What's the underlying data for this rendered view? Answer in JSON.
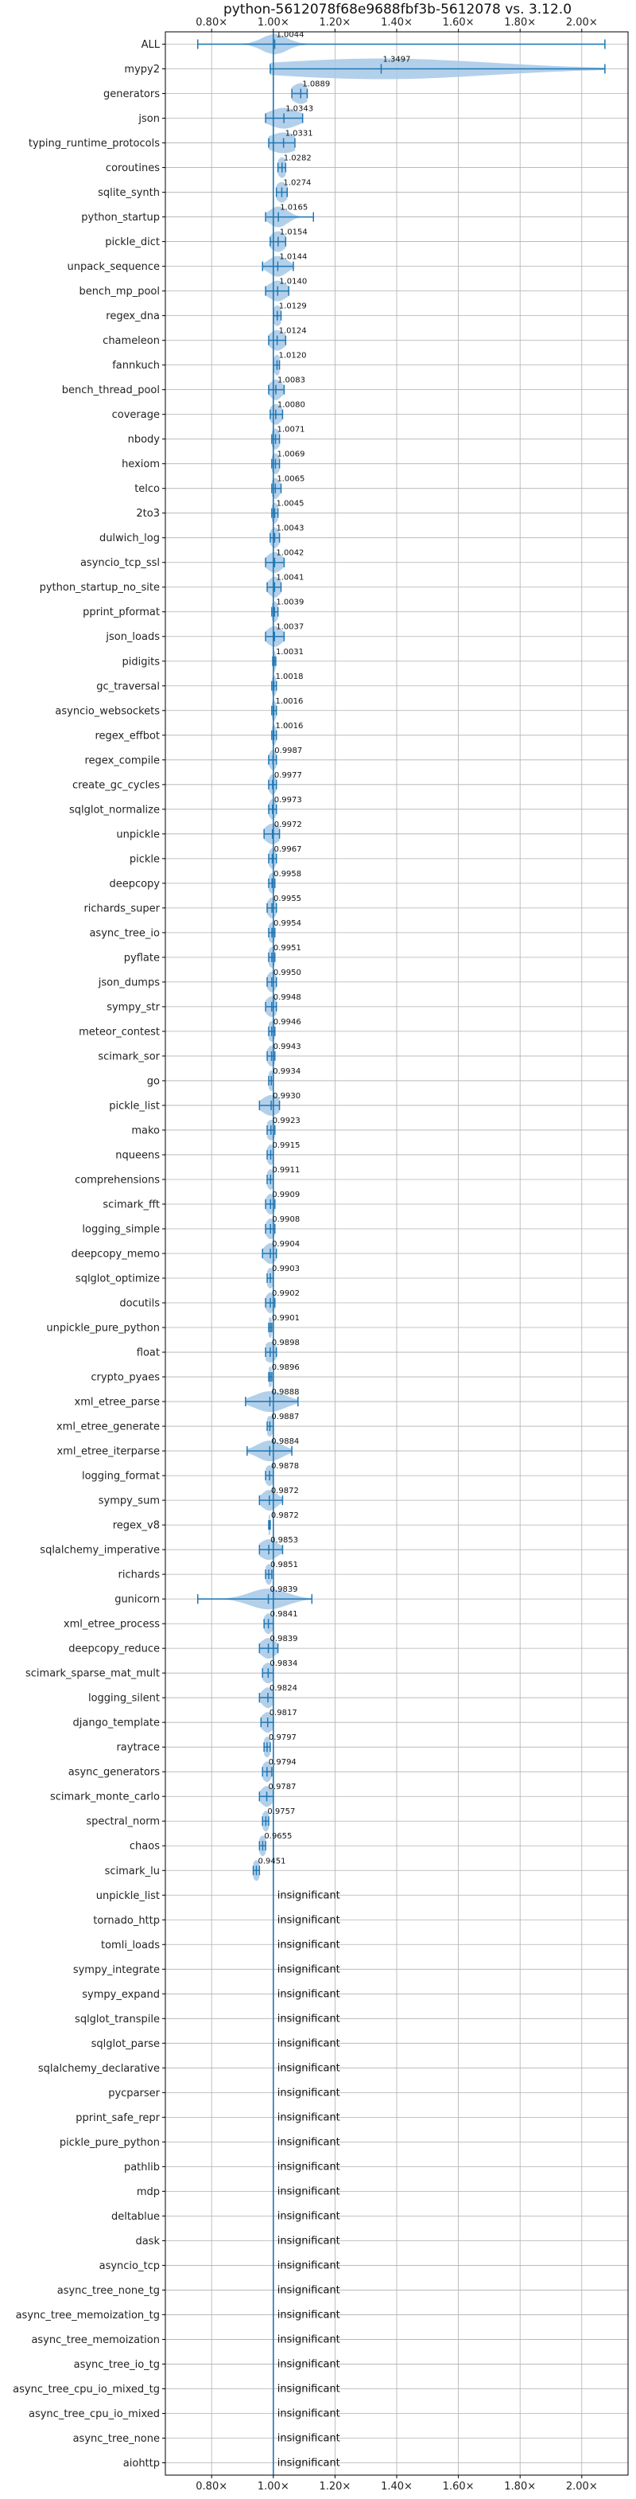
{
  "chart_data": {
    "type": "violin",
    "title": "python-5612078f68e9688fbf3b-5612078 vs. 3.12.0",
    "xlim": [
      0.65,
      2.15
    ],
    "x_ticks": [
      {
        "value": 0.8,
        "label": "0.80×"
      },
      {
        "value": 1.0,
        "label": "1.00×"
      },
      {
        "value": 1.2,
        "label": "1.20×"
      },
      {
        "value": 1.4,
        "label": "1.40×"
      },
      {
        "value": 1.6,
        "label": "1.60×"
      },
      {
        "value": 1.8,
        "label": "1.80×"
      },
      {
        "value": 2.0,
        "label": "2.00×"
      }
    ],
    "tick_positions": [
      "top",
      "bottom"
    ],
    "grid": true,
    "reference_line": 1.0,
    "colors": {
      "accent": "#1f77b4",
      "violin": "#a6c8e6",
      "grid": "#b0b0b0"
    },
    "benchmarks": [
      {
        "name": "ALL",
        "value": 1.0044,
        "label": "1.0044",
        "min": 0.755,
        "max": 2.075,
        "spread": 0.04
      },
      {
        "name": "mypy2",
        "value": 1.3497,
        "label": "1.3497",
        "min": 0.99,
        "max": 2.075,
        "spread": 0.35
      },
      {
        "name": "generators",
        "value": 1.0889,
        "label": "1.0889",
        "min": 1.06,
        "max": 1.11,
        "spread": 0.03
      },
      {
        "name": "json",
        "value": 1.0343,
        "label": "1.0343",
        "min": 0.975,
        "max": 1.095,
        "spread": 0.05
      },
      {
        "name": "typing_runtime_protocols",
        "value": 1.0331,
        "label": "1.0331",
        "min": 0.985,
        "max": 1.07,
        "spread": 0.05
      },
      {
        "name": "coroutines",
        "value": 1.0282,
        "label": "1.0282",
        "min": 1.015,
        "max": 1.04,
        "spread": 0.015
      },
      {
        "name": "sqlite_synth",
        "value": 1.0274,
        "label": "1.0274",
        "min": 1.01,
        "max": 1.045,
        "spread": 0.02
      },
      {
        "name": "python_startup",
        "value": 1.0165,
        "label": "1.0165",
        "min": 0.975,
        "max": 1.13,
        "spread": 0.03
      },
      {
        "name": "pickle_dict",
        "value": 1.0154,
        "label": "1.0154",
        "min": 0.99,
        "max": 1.04,
        "spread": 0.025
      },
      {
        "name": "unpack_sequence",
        "value": 1.0144,
        "label": "1.0144",
        "min": 0.965,
        "max": 1.065,
        "spread": 0.03
      },
      {
        "name": "bench_mp_pool",
        "value": 1.014,
        "label": "1.0140",
        "min": 0.975,
        "max": 1.05,
        "spread": 0.03
      },
      {
        "name": "regex_dna",
        "value": 1.0129,
        "label": "1.0129",
        "min": 1.0,
        "max": 1.025,
        "spread": 0.015
      },
      {
        "name": "chameleon",
        "value": 1.0124,
        "label": "1.0124",
        "min": 0.985,
        "max": 1.04,
        "spread": 0.025
      },
      {
        "name": "fannkuch",
        "value": 1.012,
        "label": "1.0120",
        "min": 1.0,
        "max": 1.02,
        "spread": 0.012
      },
      {
        "name": "bench_thread_pool",
        "value": 1.0083,
        "label": "1.0083",
        "min": 0.985,
        "max": 1.035,
        "spread": 0.02
      },
      {
        "name": "coverage",
        "value": 1.008,
        "label": "1.0080",
        "min": 0.99,
        "max": 1.03,
        "spread": 0.02
      },
      {
        "name": "nbody",
        "value": 1.0071,
        "label": "1.0071",
        "min": 0.995,
        "max": 1.02,
        "spread": 0.015
      },
      {
        "name": "hexiom",
        "value": 1.0069,
        "label": "1.0069",
        "min": 0.995,
        "max": 1.02,
        "spread": 0.015
      },
      {
        "name": "telco",
        "value": 1.0065,
        "label": "1.0065",
        "min": 0.995,
        "max": 1.025,
        "spread": 0.015
      },
      {
        "name": "2to3",
        "value": 1.0045,
        "label": "1.0045",
        "min": 0.995,
        "max": 1.015,
        "spread": 0.012
      },
      {
        "name": "dulwich_log",
        "value": 1.0043,
        "label": "1.0043",
        "min": 0.99,
        "max": 1.02,
        "spread": 0.015
      },
      {
        "name": "asyncio_tcp_ssl",
        "value": 1.0042,
        "label": "1.0042",
        "min": 0.975,
        "max": 1.035,
        "spread": 0.025
      },
      {
        "name": "python_startup_no_site",
        "value": 1.0041,
        "label": "1.0041",
        "min": 0.98,
        "max": 1.025,
        "spread": 0.02
      },
      {
        "name": "pprint_pformat",
        "value": 1.0039,
        "label": "1.0039",
        "min": 0.995,
        "max": 1.015,
        "spread": 0.012
      },
      {
        "name": "json_loads",
        "value": 1.0037,
        "label": "1.0037",
        "min": 0.975,
        "max": 1.035,
        "spread": 0.025
      },
      {
        "name": "pidigits",
        "value": 1.0031,
        "label": "1.0031",
        "min": 0.998,
        "max": 1.008,
        "spread": 0.005
      },
      {
        "name": "gc_traversal",
        "value": 1.0018,
        "label": "1.0018",
        "min": 0.995,
        "max": 1.01,
        "spread": 0.008
      },
      {
        "name": "asyncio_websockets",
        "value": 1.0016,
        "label": "1.0016",
        "min": 0.995,
        "max": 1.01,
        "spread": 0.008
      },
      {
        "name": "regex_effbot",
        "value": 1.0016,
        "label": "1.0016",
        "min": 0.995,
        "max": 1.01,
        "spread": 0.008
      },
      {
        "name": "regex_compile",
        "value": 0.9987,
        "label": "0.9987",
        "min": 0.985,
        "max": 1.01,
        "spread": 0.012
      },
      {
        "name": "create_gc_cycles",
        "value": 0.9977,
        "label": "0.9977",
        "min": 0.985,
        "max": 1.01,
        "spread": 0.012
      },
      {
        "name": "sqlglot_normalize",
        "value": 0.9973,
        "label": "0.9973",
        "min": 0.985,
        "max": 1.01,
        "spread": 0.012
      },
      {
        "name": "unpickle",
        "value": 0.9972,
        "label": "0.9972",
        "min": 0.97,
        "max": 1.02,
        "spread": 0.025
      },
      {
        "name": "pickle",
        "value": 0.9967,
        "label": "0.9967",
        "min": 0.985,
        "max": 1.01,
        "spread": 0.012
      },
      {
        "name": "deepcopy",
        "value": 0.9958,
        "label": "0.9958",
        "min": 0.985,
        "max": 1.005,
        "spread": 0.012
      },
      {
        "name": "richards_super",
        "value": 0.9955,
        "label": "0.9955",
        "min": 0.98,
        "max": 1.01,
        "spread": 0.015
      },
      {
        "name": "async_tree_io",
        "value": 0.9954,
        "label": "0.9954",
        "min": 0.985,
        "max": 1.005,
        "spread": 0.012
      },
      {
        "name": "pyflate",
        "value": 0.9951,
        "label": "0.9951",
        "min": 0.985,
        "max": 1.005,
        "spread": 0.012
      },
      {
        "name": "json_dumps",
        "value": 0.995,
        "label": "0.9950",
        "min": 0.98,
        "max": 1.01,
        "spread": 0.015
      },
      {
        "name": "sympy_str",
        "value": 0.9948,
        "label": "0.9948",
        "min": 0.975,
        "max": 1.01,
        "spread": 0.02
      },
      {
        "name": "meteor_contest",
        "value": 0.9946,
        "label": "0.9946",
        "min": 0.985,
        "max": 1.005,
        "spread": 0.012
      },
      {
        "name": "scimark_sor",
        "value": 0.9943,
        "label": "0.9943",
        "min": 0.98,
        "max": 1.005,
        "spread": 0.015
      },
      {
        "name": "go",
        "value": 0.9934,
        "label": "0.9934",
        "min": 0.985,
        "max": 1.0,
        "spread": 0.01
      },
      {
        "name": "pickle_list",
        "value": 0.993,
        "label": "0.9930",
        "min": 0.955,
        "max": 1.02,
        "spread": 0.03
      },
      {
        "name": "mako",
        "value": 0.9923,
        "label": "0.9923",
        "min": 0.98,
        "max": 1.005,
        "spread": 0.015
      },
      {
        "name": "nqueens",
        "value": 0.9915,
        "label": "0.9915",
        "min": 0.98,
        "max": 1.0,
        "spread": 0.012
      },
      {
        "name": "comprehensions",
        "value": 0.9911,
        "label": "0.9911",
        "min": 0.98,
        "max": 1.0,
        "spread": 0.012
      },
      {
        "name": "scimark_fft",
        "value": 0.9909,
        "label": "0.9909",
        "min": 0.975,
        "max": 1.005,
        "spread": 0.015
      },
      {
        "name": "logging_simple",
        "value": 0.9908,
        "label": "0.9908",
        "min": 0.975,
        "max": 1.005,
        "spread": 0.015
      },
      {
        "name": "deepcopy_memo",
        "value": 0.9904,
        "label": "0.9904",
        "min": 0.965,
        "max": 1.01,
        "spread": 0.02
      },
      {
        "name": "sqlglot_optimize",
        "value": 0.9903,
        "label": "0.9903",
        "min": 0.98,
        "max": 1.0,
        "spread": 0.012
      },
      {
        "name": "docutils",
        "value": 0.9902,
        "label": "0.9902",
        "min": 0.975,
        "max": 1.005,
        "spread": 0.015
      },
      {
        "name": "unpickle_pure_python",
        "value": 0.9901,
        "label": "0.9901",
        "min": 0.985,
        "max": 0.995,
        "spread": 0.008
      },
      {
        "name": "float",
        "value": 0.9898,
        "label": "0.9898",
        "min": 0.975,
        "max": 1.01,
        "spread": 0.02
      },
      {
        "name": "crypto_pyaes",
        "value": 0.9896,
        "label": "0.9896",
        "min": 0.985,
        "max": 0.995,
        "spread": 0.008
      },
      {
        "name": "xml_etree_parse",
        "value": 0.9888,
        "label": "0.9888",
        "min": 0.91,
        "max": 1.08,
        "spread": 0.05
      },
      {
        "name": "xml_etree_generate",
        "value": 0.9887,
        "label": "0.9887",
        "min": 0.98,
        "max": 1.0,
        "spread": 0.012
      },
      {
        "name": "xml_etree_iterparse",
        "value": 0.9884,
        "label": "0.9884",
        "min": 0.915,
        "max": 1.06,
        "spread": 0.04
      },
      {
        "name": "logging_format",
        "value": 0.9878,
        "label": "0.9878",
        "min": 0.975,
        "max": 1.0,
        "spread": 0.015
      },
      {
        "name": "sympy_sum",
        "value": 0.9872,
        "label": "0.9872",
        "min": 0.955,
        "max": 1.03,
        "spread": 0.025
      },
      {
        "name": "regex_v8",
        "value": 0.9872,
        "label": "0.9872",
        "min": 0.985,
        "max": 0.99,
        "spread": 0.005
      },
      {
        "name": "sqlalchemy_imperative",
        "value": 0.9853,
        "label": "0.9853",
        "min": 0.955,
        "max": 1.03,
        "spread": 0.03
      },
      {
        "name": "richards",
        "value": 0.9851,
        "label": "0.9851",
        "min": 0.975,
        "max": 0.995,
        "spread": 0.012
      },
      {
        "name": "gunicorn",
        "value": 0.9839,
        "label": "0.9839",
        "min": 0.755,
        "max": 1.125,
        "spread": 0.06
      },
      {
        "name": "xml_etree_process",
        "value": 0.9841,
        "label": "0.9841",
        "min": 0.97,
        "max": 1.0,
        "spread": 0.015
      },
      {
        "name": "deepcopy_reduce",
        "value": 0.9839,
        "label": "0.9839",
        "min": 0.955,
        "max": 1.015,
        "spread": 0.025
      },
      {
        "name": "scimark_sparse_mat_mult",
        "value": 0.9834,
        "label": "0.9834",
        "min": 0.965,
        "max": 1.0,
        "spread": 0.02
      },
      {
        "name": "logging_silent",
        "value": 0.9824,
        "label": "0.9824",
        "min": 0.955,
        "max": 1.0,
        "spread": 0.02
      },
      {
        "name": "django_template",
        "value": 0.9817,
        "label": "0.9817",
        "min": 0.96,
        "max": 1.0,
        "spread": 0.02
      },
      {
        "name": "raytrace",
        "value": 0.9797,
        "label": "0.9797",
        "min": 0.97,
        "max": 0.99,
        "spread": 0.012
      },
      {
        "name": "async_generators",
        "value": 0.9794,
        "label": "0.9794",
        "min": 0.965,
        "max": 0.995,
        "spread": 0.015
      },
      {
        "name": "scimark_monte_carlo",
        "value": 0.9787,
        "label": "0.9787",
        "min": 0.955,
        "max": 1.0,
        "spread": 0.02
      },
      {
        "name": "spectral_norm",
        "value": 0.9757,
        "label": "0.9757",
        "min": 0.965,
        "max": 0.985,
        "spread": 0.012
      },
      {
        "name": "chaos",
        "value": 0.9655,
        "label": "0.9655",
        "min": 0.955,
        "max": 0.975,
        "spread": 0.012
      },
      {
        "name": "scimark_lu",
        "value": 0.9451,
        "label": "0.9451",
        "min": 0.935,
        "max": 0.955,
        "spread": 0.012
      },
      {
        "name": "unpickle_list",
        "value": 1.0,
        "label": "insignificant",
        "insignificant": true
      },
      {
        "name": "tornado_http",
        "value": 1.0,
        "label": "insignificant",
        "insignificant": true
      },
      {
        "name": "tomli_loads",
        "value": 1.0,
        "label": "insignificant",
        "insignificant": true
      },
      {
        "name": "sympy_integrate",
        "value": 1.0,
        "label": "insignificant",
        "insignificant": true
      },
      {
        "name": "sympy_expand",
        "value": 1.0,
        "label": "insignificant",
        "insignificant": true
      },
      {
        "name": "sqlglot_transpile",
        "value": 1.0,
        "label": "insignificant",
        "insignificant": true
      },
      {
        "name": "sqlglot_parse",
        "value": 1.0,
        "label": "insignificant",
        "insignificant": true
      },
      {
        "name": "sqlalchemy_declarative",
        "value": 1.0,
        "label": "insignificant",
        "insignificant": true
      },
      {
        "name": "pycparser",
        "value": 1.0,
        "label": "insignificant",
        "insignificant": true
      },
      {
        "name": "pprint_safe_repr",
        "value": 1.0,
        "label": "insignificant",
        "insignificant": true
      },
      {
        "name": "pickle_pure_python",
        "value": 1.0,
        "label": "insignificant",
        "insignificant": true
      },
      {
        "name": "pathlib",
        "value": 1.0,
        "label": "insignificant",
        "insignificant": true
      },
      {
        "name": "mdp",
        "value": 1.0,
        "label": "insignificant",
        "insignificant": true
      },
      {
        "name": "deltablue",
        "value": 1.0,
        "label": "insignificant",
        "insignificant": true
      },
      {
        "name": "dask",
        "value": 1.0,
        "label": "insignificant",
        "insignificant": true
      },
      {
        "name": "asyncio_tcp",
        "value": 1.0,
        "label": "insignificant",
        "insignificant": true
      },
      {
        "name": "async_tree_none_tg",
        "value": 1.0,
        "label": "insignificant",
        "insignificant": true
      },
      {
        "name": "async_tree_memoization_tg",
        "value": 1.0,
        "label": "insignificant",
        "insignificant": true
      },
      {
        "name": "async_tree_memoization",
        "value": 1.0,
        "label": "insignificant",
        "insignificant": true
      },
      {
        "name": "async_tree_io_tg",
        "value": 1.0,
        "label": "insignificant",
        "insignificant": true
      },
      {
        "name": "async_tree_cpu_io_mixed_tg",
        "value": 1.0,
        "label": "insignificant",
        "insignificant": true
      },
      {
        "name": "async_tree_cpu_io_mixed",
        "value": 1.0,
        "label": "insignificant",
        "insignificant": true
      },
      {
        "name": "async_tree_none",
        "value": 1.0,
        "label": "insignificant",
        "insignificant": true
      },
      {
        "name": "aiohttp",
        "value": 1.0,
        "label": "insignificant",
        "insignificant": true
      }
    ]
  }
}
